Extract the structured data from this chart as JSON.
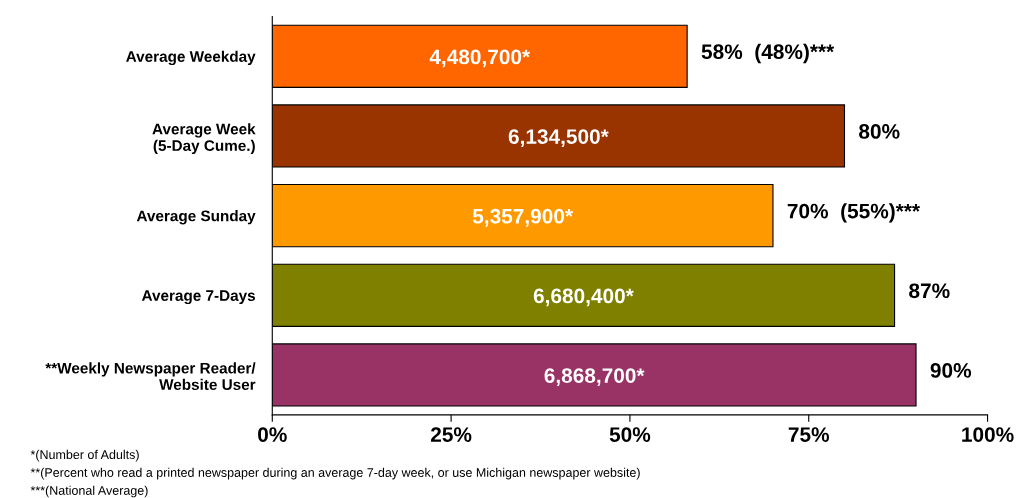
{
  "chart_data": {
    "type": "bar",
    "orientation": "horizontal",
    "categories": [
      "Average Weekday",
      "Average Week\n(5-Day Cume.)",
      "Average Sunday",
      "Average 7-Days",
      "**Weekly Newspaper Reader/\nWebsite User"
    ],
    "values": [
      58,
      80,
      70,
      87,
      90
    ],
    "colors": [
      "#ff6600",
      "#993300",
      "#ff9900",
      "#808000",
      "#993366"
    ],
    "value_labels": [
      "58%  (48%)***",
      "80%",
      "70%  (55%)***",
      "87%",
      "90%"
    ],
    "xlim": [
      0,
      100
    ],
    "xticks": [
      {
        "value": 0,
        "label": "0%"
      },
      {
        "value": 25,
        "label": "25%"
      },
      {
        "value": 50,
        "label": "50%"
      },
      {
        "value": 75,
        "label": "75%"
      },
      {
        "value": 100,
        "label": "100%"
      }
    ],
    "grid": false,
    "annotations": [
      {
        "text": "4,480,700*",
        "y": "Average Weekday"
      },
      {
        "text": "6,134,500*",
        "y": "Average Week\n(5-Day Cume.)"
      },
      {
        "text": "5,357,900*",
        "y": "Average Sunday"
      },
      {
        "text": "6,680,400*",
        "y": "Average 7-Days"
      },
      {
        "text": "6,868,700*",
        "y": "**Weekly Newspaper Reader/\nWebsite User"
      },
      "*(Number of Adults)",
      "**(Percent who read a printed newspaper during an average 7-day week, or use Michigan newspaper website)",
      "***(National Average)"
    ]
  }
}
